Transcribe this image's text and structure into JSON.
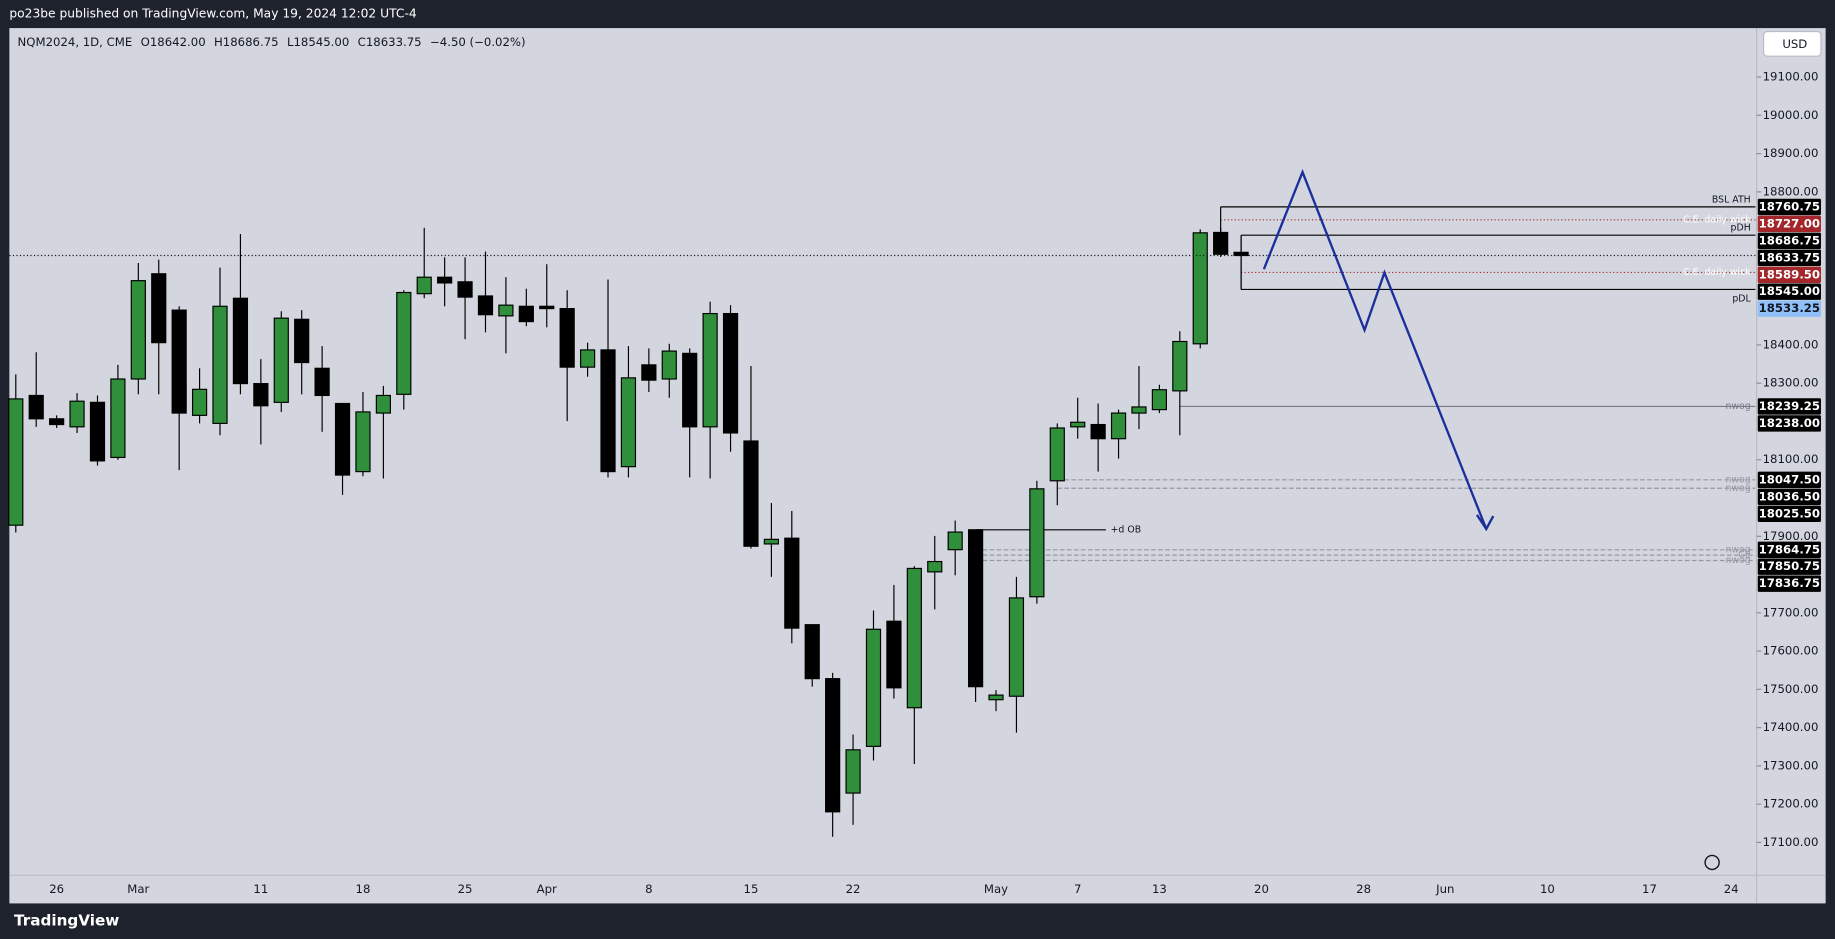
{
  "publisher": "po23be published on TradingView.com, May 19, 2024 12:02 UTC-4",
  "footer": "TradingView",
  "currency": "USD",
  "legend": {
    "symbol": "NQM2024, 1D, CME",
    "open": "O18642.00",
    "high": "H18686.75",
    "low": "L18545.00",
    "close": "C18633.75",
    "change": "−4.50 (−0.02%)"
  },
  "chart_data": {
    "type": "candlestick",
    "up_color": "#2f8f3a",
    "down_color": "#000000",
    "categories": [
      null,
      null,
      "26",
      null,
      null,
      null,
      "Mar",
      null,
      null,
      null,
      null,
      null,
      "11",
      null,
      null,
      null,
      null,
      "18",
      null,
      null,
      null,
      null,
      "25",
      null,
      null,
      null,
      "Apr",
      null,
      null,
      null,
      null,
      "8",
      null,
      null,
      null,
      null,
      "15",
      null,
      null,
      null,
      null,
      "22",
      null,
      null,
      null,
      null,
      null,
      null,
      "May",
      null,
      null,
      null,
      "7",
      null,
      null,
      null,
      "13",
      null,
      null,
      null,
      null,
      "20",
      null,
      null,
      null,
      null,
      "28",
      null,
      null,
      null,
      "Jun",
      null,
      null,
      null,
      null,
      "10",
      null,
      null,
      null,
      null,
      "17",
      null,
      null,
      null,
      "24",
      null
    ],
    "open": [
      17929,
      18268,
      18207,
      18186,
      18250,
      18106,
      18311,
      18586,
      18491,
      18216,
      18195,
      18522,
      18299,
      18250,
      18467,
      18339,
      18247,
      18069,
      18222,
      18271,
      18534,
      18577,
      18565,
      18528,
      18476,
      18501,
      18501,
      18495,
      18342,
      18387,
      18082,
      18348,
      18311,
      18378,
      18186,
      18482,
      18149,
      17880,
      17895,
      17669,
      17528,
      17229,
      17351,
      17678,
      17452,
      17807,
      17865,
      17917,
      17473,
      17482,
      17742,
      18045,
      18186,
      18192,
      18155,
      18222,
      18231,
      18280,
      18403,
      18694,
      18642,
      null,
      null,
      null,
      null,
      null,
      null,
      null,
      null,
      null,
      null,
      null,
      null,
      null,
      null,
      null,
      null,
      null,
      null,
      null,
      null,
      null,
      null,
      null,
      null,
      null
    ],
    "high": [
      18323,
      18381,
      18216,
      18274,
      18268,
      18348,
      18614,
      18623,
      18501,
      18339,
      18602,
      18690,
      18363,
      18488,
      18491,
      18397,
      18247,
      18277,
      18293,
      18543,
      18706,
      18629,
      18629,
      18644,
      18577,
      18547,
      18611,
      18543,
      18406,
      18571,
      18397,
      18391,
      18403,
      18391,
      18513,
      18504,
      18345,
      17987,
      17966,
      17669,
      17543,
      17382,
      17706,
      17773,
      17822,
      17901,
      17941,
      17917,
      17498,
      17794,
      18045,
      18195,
      18262,
      18247,
      18231,
      18345,
      18296,
      18436,
      18702,
      18706,
      18686.75,
      null,
      null,
      null,
      null,
      null,
      null,
      null,
      null,
      null,
      null,
      null,
      null,
      null,
      null,
      null,
      null,
      null,
      null,
      null,
      null,
      null,
      null,
      null,
      null,
      null
    ],
    "low": [
      17910,
      18186,
      18183,
      18170,
      18085,
      18100,
      18271,
      18271,
      18073,
      18195,
      18164,
      18271,
      18140,
      18225,
      18271,
      18173,
      18008,
      18057,
      18051,
      18231,
      18522,
      18501,
      18415,
      18433,
      18378,
      18449,
      18446,
      18201,
      18317,
      18054,
      18054,
      18277,
      18262,
      18054,
      18051,
      18121,
      17868,
      17794,
      17620,
      17507,
      17115,
      17146,
      17314,
      17476,
      17305,
      17709,
      17798,
      17467,
      17443,
      17387,
      17724,
      17981,
      18155,
      18069,
      18103,
      18180,
      18222,
      18164,
      18391,
      18630,
      18545,
      null,
      null,
      null,
      null,
      null,
      null,
      null,
      null,
      null,
      null,
      null,
      null,
      null,
      null,
      null,
      null,
      null,
      null,
      null,
      null,
      null,
      null,
      null,
      null,
      null
    ],
    "close": [
      18259,
      18207,
      18192,
      18253,
      18097,
      18311,
      18568,
      18406,
      18222,
      18284,
      18501,
      18299,
      18241,
      18470,
      18354,
      18268,
      18060,
      18225,
      18268,
      18537,
      18577,
      18562,
      18525,
      18479,
      18504,
      18461,
      18495,
      18342,
      18387,
      18069,
      18314,
      18308,
      18384,
      18186,
      18482,
      18170,
      17874,
      17892,
      17660,
      17528,
      17180,
      17342,
      17657,
      17504,
      17816,
      17834,
      17911,
      17507,
      17485,
      17739,
      18024,
      18183,
      18198,
      18155,
      18222,
      18238,
      18283,
      18409,
      18693,
      18637,
      18633.75,
      null,
      null,
      null,
      null,
      null,
      null,
      null,
      null,
      null,
      null,
      null,
      null,
      null,
      null,
      null,
      null,
      null,
      null,
      null,
      null,
      null,
      null,
      null,
      null,
      null
    ],
    "ylim": [
      17014,
      19228
    ],
    "yticks": [
      {
        "value": 19100,
        "label": "19100.00"
      },
      {
        "value": 19000,
        "label": "19000.00"
      },
      {
        "value": 18900,
        "label": "18900.00"
      },
      {
        "value": 18800,
        "label": "18800.00"
      },
      {
        "value": 18400,
        "label": "18400.00"
      },
      {
        "value": 18300,
        "label": "18300.00"
      },
      {
        "value": 18100,
        "label": "18100.00"
      },
      {
        "value": 17900,
        "label": "17900.00"
      },
      {
        "value": 17700,
        "label": "17700.00"
      },
      {
        "value": 17600,
        "label": "17600.00"
      },
      {
        "value": 17500,
        "label": "17500.00"
      },
      {
        "value": 17400,
        "label": "17400.00"
      },
      {
        "value": 17300,
        "label": "17300.00"
      },
      {
        "value": 17200,
        "label": "17200.00"
      },
      {
        "value": 17100,
        "label": "17100.00"
      }
    ],
    "price_labels": [
      {
        "value": 18760.75,
        "color": "#000000"
      },
      {
        "value": 18727,
        "label": "18727.00",
        "color": "#a3262b"
      },
      {
        "value": 18686.75,
        "color": "#000000"
      },
      {
        "value": 18633.75,
        "color": "#000000"
      },
      {
        "value": 18589.5,
        "label": "18589.50",
        "color": "#a3262b"
      },
      {
        "value": 18545,
        "label": "18545.00",
        "color": "#000000"
      },
      {
        "value": 18533.25,
        "color": "#90bff9"
      },
      {
        "value": 18239.25,
        "color": "#000000"
      },
      {
        "value": 18238,
        "label": "18238.00",
        "color": "#000000"
      },
      {
        "value": 18047.5,
        "label": "18047.50",
        "color": "#000000"
      },
      {
        "value": 18036.5,
        "label": "18036.50",
        "color": "#000000"
      },
      {
        "value": 18025.5,
        "label": "18025.50",
        "color": "#000000"
      },
      {
        "value": 17864.75,
        "color": "#000000"
      },
      {
        "value": 17850.75,
        "color": "#000000"
      },
      {
        "value": 17836.75,
        "color": "#000000"
      }
    ],
    "annotations": [
      {
        "text": "BSL ATH",
        "value": 18760.75
      },
      {
        "text": "C.E. daily wick",
        "value": 18727
      },
      {
        "text": "pDH",
        "value": 18686.75
      },
      {
        "text": "C.E. daily wick",
        "value": 18589.5
      },
      {
        "text": "pDL",
        "value": 18545
      },
      {
        "text": "nwog",
        "value": 18239.25
      },
      {
        "text": "nwog",
        "value": 18047.5
      },
      {
        "text": "nwog",
        "value": 18025.5
      },
      {
        "text": "nwog",
        "value": 17864.75
      },
      {
        "text": "CE",
        "value": 17850.75
      },
      {
        "text": "nwog",
        "value": 17836.75
      },
      {
        "text": "+d OB",
        "value": 17917
      }
    ]
  }
}
